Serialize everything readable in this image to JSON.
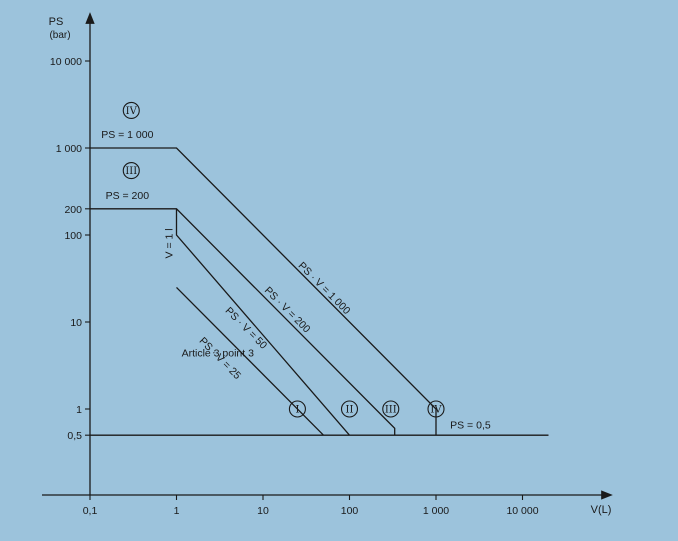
{
  "chart_data": {
    "type": "line",
    "y_axis": {
      "label": "PS",
      "unit": "(bar)",
      "scale": "log"
    },
    "x_axis": {
      "label": "V(L)",
      "scale": "log"
    },
    "x_ticks": [
      {
        "value": 0.1,
        "label": "0,1"
      },
      {
        "value": 1,
        "label": "1"
      },
      {
        "value": 10,
        "label": "10"
      },
      {
        "value": 100,
        "label": "100"
      },
      {
        "value": 1000,
        "label": "1 000"
      },
      {
        "value": 10000,
        "label": "10 000"
      }
    ],
    "y_ticks": [
      {
        "value": 0.5,
        "label": "0,5"
      },
      {
        "value": 1,
        "label": "1"
      },
      {
        "value": 10,
        "label": "10"
      },
      {
        "value": 100,
        "label": "100"
      },
      {
        "value": 200,
        "label": "200"
      },
      {
        "value": 1000,
        "label": "1 000"
      },
      {
        "value": 10000,
        "label": "10 000"
      }
    ],
    "series": [
      {
        "points": [
          [
            0.1,
            1000
          ],
          [
            1,
            1000
          ],
          [
            1000,
            1
          ],
          [
            1000,
            0.5
          ]
        ]
      },
      {
        "points": [
          [
            0.1,
            200
          ],
          [
            1,
            200
          ],
          [
            333,
            0.6
          ],
          [
            333,
            0.5
          ]
        ]
      },
      {
        "points": [
          [
            1,
            200
          ],
          [
            1,
            100
          ],
          [
            100,
            0.5
          ]
        ]
      },
      {
        "points": [
          [
            1,
            25
          ],
          [
            50,
            0.5
          ]
        ]
      },
      {
        "points": [
          [
            0.1,
            0.5
          ],
          [
            20000,
            0.5
          ]
        ]
      }
    ],
    "line_labels": [
      {
        "text": "PS = 1 000",
        "x": 0.27,
        "y": 1300
      },
      {
        "text": "PS = 200",
        "x": 0.27,
        "y": 260
      },
      {
        "text": "PS = 0,5",
        "x": 2500,
        "y": 0.6
      },
      {
        "text": "PS · V = 1 000",
        "x": 48,
        "y": 23
      },
      {
        "text": "PS · V = 200",
        "x": 18,
        "y": 13
      },
      {
        "text": "PS · V = 50",
        "x": 6,
        "y": 8
      },
      {
        "text": "PS · V = 25",
        "x": 3,
        "y": 3.6
      },
      {
        "text": "V = 1 l",
        "x": 0.9,
        "y": 80
      }
    ],
    "category_markers": [
      {
        "text": "IV",
        "x": 0.3,
        "y": 2700
      },
      {
        "text": "III",
        "x": 0.3,
        "y": 550
      },
      {
        "text": "I",
        "x": 25,
        "y": 1
      },
      {
        "text": "II",
        "x": 100,
        "y": 1
      },
      {
        "text": "III",
        "x": 300,
        "y": 1
      },
      {
        "text": "IV",
        "x": 1000,
        "y": 1
      }
    ],
    "annotations": [
      {
        "text": "Article 3 point 3",
        "x": 3,
        "y": 4
      }
    ],
    "colors": {
      "background": "#9cc3dc",
      "lines": "#1a1a1a"
    }
  }
}
